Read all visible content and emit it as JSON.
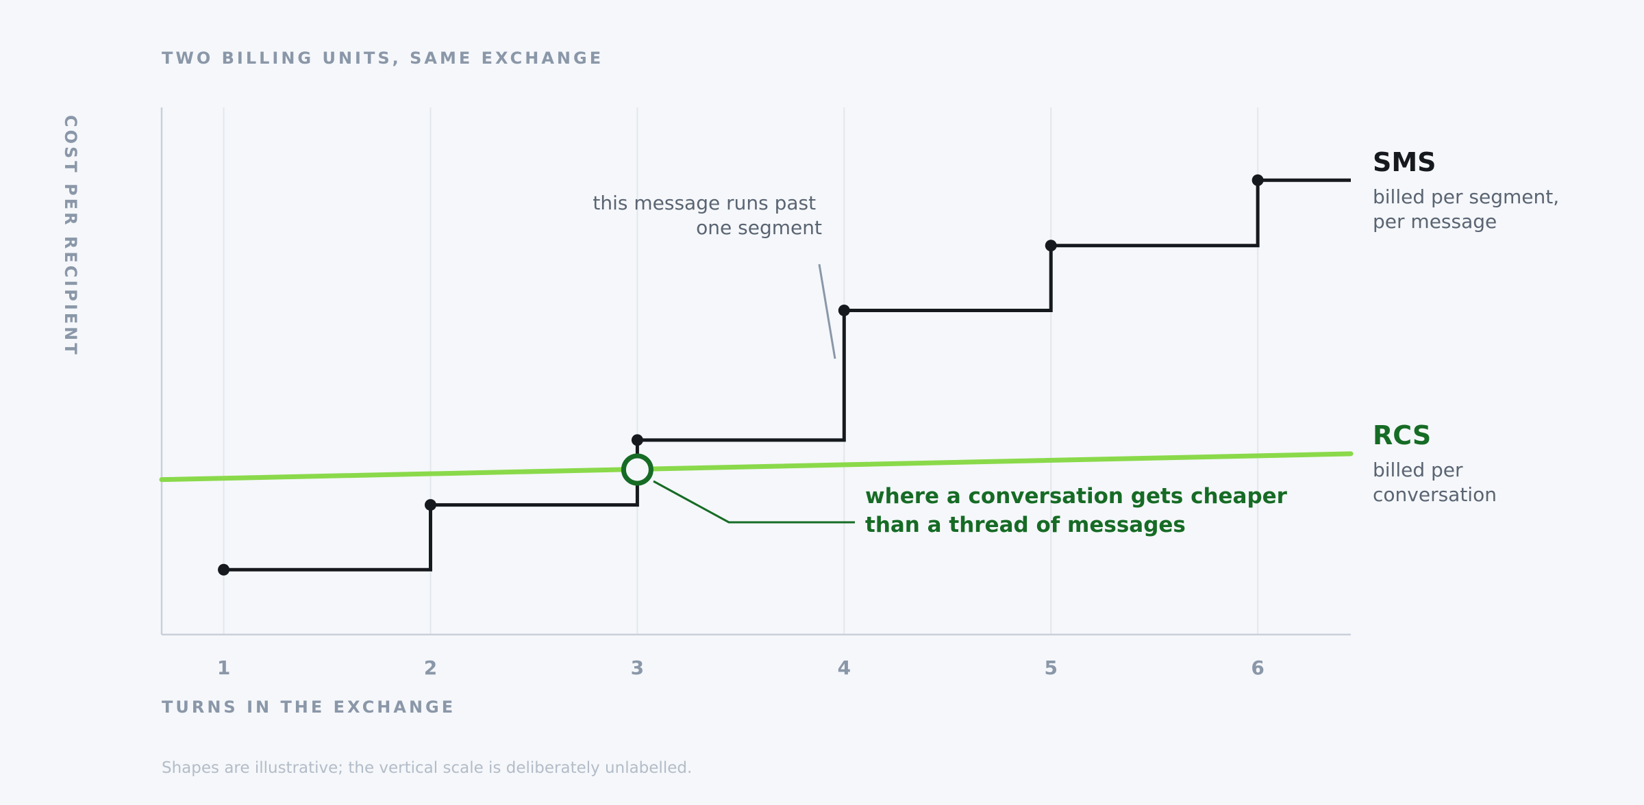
{
  "chart_data": {
    "type": "line",
    "title": "TWO BILLING UNITS, SAME EXCHANGE",
    "xlabel": "TURNS IN THE EXCHANGE",
    "ylabel": "COST PER RECIPIENT",
    "x_ticks": [
      "1",
      "2",
      "3",
      "4",
      "5",
      "6"
    ],
    "xlim": [
      0.7,
      6.45
    ],
    "ylim": [
      0,
      1
    ],
    "grid": true,
    "series": [
      {
        "name": "SMS",
        "description": [
          "billed per segment,",
          "per message"
        ],
        "color": "#16191d",
        "style": "step",
        "x": [
          1,
          2,
          3,
          4,
          5,
          6
        ],
        "values": [
          0.123,
          0.246,
          0.369,
          0.615,
          0.738,
          0.862
        ],
        "extend_to": 6.45
      },
      {
        "name": "RCS",
        "description": [
          "billed per",
          "conversation"
        ],
        "color": "#8ad94a",
        "label_color": "#166b25",
        "style": "line",
        "x": [
          0.7,
          6.45
        ],
        "values": [
          0.294,
          0.343
        ]
      }
    ],
    "annotations": [
      {
        "lines": [
          "this message runs past",
          "one segment"
        ],
        "target_x": 4,
        "color": "#5a6472"
      },
      {
        "lines": [
          "where a conversation gets cheaper",
          "than a thread of messages"
        ],
        "target_x": 3,
        "target_y": 0.313,
        "color": "#166b25"
      }
    ],
    "footnote": "Shapes are illustrative; the vertical scale is deliberately unlabelled."
  }
}
